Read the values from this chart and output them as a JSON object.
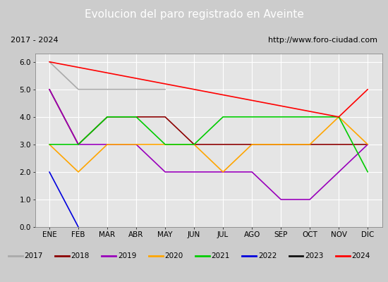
{
  "title": "Evolucion del paro registrado en Aveinte",
  "subtitle_left": "2017 - 2024",
  "subtitle_right": "http://www.foro-ciudad.com",
  "xlabel_months": [
    "ENE",
    "FEB",
    "MAR",
    "ABR",
    "MAY",
    "JUN",
    "JUL",
    "AGO",
    "SEP",
    "OCT",
    "NOV",
    "DIC"
  ],
  "ylim": [
    0.0,
    6.3
  ],
  "yticks": [
    0.0,
    1.0,
    2.0,
    3.0,
    4.0,
    5.0,
    6.0
  ],
  "series": [
    {
      "year": "2017",
      "color": "#aaaaaa",
      "values": [
        6,
        5,
        null,
        null,
        5,
        null,
        null,
        null,
        null,
        null,
        null,
        null
      ]
    },
    {
      "year": "2018",
      "color": "#8b0000",
      "values": [
        5,
        3,
        4,
        4,
        4,
        3,
        3,
        3,
        3,
        3,
        3,
        3
      ]
    },
    {
      "year": "2019",
      "color": "#9900bb",
      "values": [
        5,
        3,
        3,
        3,
        2,
        2,
        2,
        2,
        1,
        1,
        2,
        3
      ]
    },
    {
      "year": "2020",
      "color": "#ffa500",
      "values": [
        3,
        2,
        3,
        3,
        3,
        3,
        2,
        3,
        3,
        3,
        4,
        3
      ]
    },
    {
      "year": "2021",
      "color": "#00cc00",
      "values": [
        3,
        3,
        4,
        4,
        3,
        3,
        4,
        4,
        4,
        4,
        4,
        2
      ]
    },
    {
      "year": "2022",
      "color": "#0000dd",
      "values": [
        2,
        0,
        null,
        null,
        null,
        null,
        null,
        null,
        null,
        null,
        null,
        null
      ]
    },
    {
      "year": "2023",
      "color": "#111111",
      "values": [
        null,
        null,
        null,
        null,
        null,
        null,
        null,
        null,
        null,
        null,
        null,
        null
      ]
    },
    {
      "year": "2024",
      "color": "#ff0000",
      "values": [
        6,
        null,
        null,
        null,
        null,
        null,
        null,
        null,
        null,
        null,
        4,
        5
      ]
    }
  ],
  "title_bg": "#4a7fc1",
  "title_fg": "white",
  "subtitle_bg": "white",
  "plot_bg": "#e5e5e5",
  "fig_bg": "#cccccc",
  "legend_bg": "white",
  "grid_color": "white",
  "title_fontsize": 11,
  "tick_fontsize": 7.5,
  "legend_fontsize": 7.5
}
